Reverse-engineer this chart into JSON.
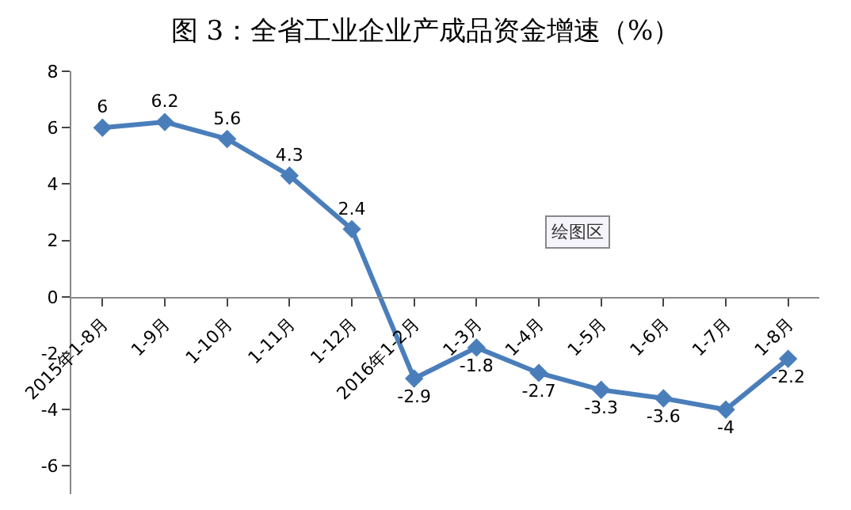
{
  "chart_data": {
    "type": "line",
    "title": "图 3：全省工业企业产成品资金增速（%）",
    "categories": [
      "2015年1-8月",
      "1-9月",
      "1-10月",
      "1-11月",
      "1-12月",
      "2016年1-2月",
      "1-3月",
      "1-4月",
      "1-5月",
      "1-6月",
      "1-7月",
      "1-8月"
    ],
    "series": [
      {
        "color": "#4a7ebb",
        "values": [
          6,
          6.2,
          5.6,
          4.3,
          2.4,
          -2.9,
          -1.8,
          -2.7,
          -3.3,
          -3.6,
          -4,
          -2.2
        ]
      }
    ],
    "ylim": [
      -7,
      8
    ],
    "yticks": [
      -6,
      -4,
      -2,
      0,
      2,
      4,
      6,
      8
    ],
    "annotations": [
      "绘图区"
    ],
    "data_labels": true,
    "marker": "diamond",
    "line_style": "solid"
  }
}
